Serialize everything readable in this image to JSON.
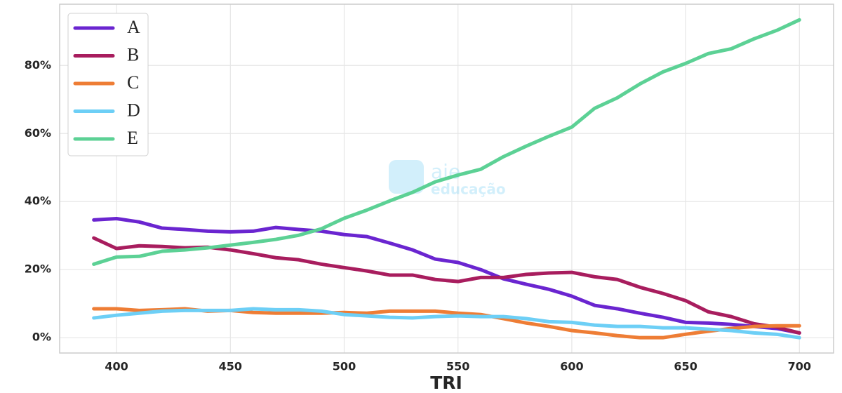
{
  "chart_data": {
    "type": "line",
    "x_label": "TRI",
    "watermark": [
      "aie",
      "educação"
    ],
    "x": [
      390,
      400,
      410,
      420,
      430,
      440,
      450,
      460,
      470,
      480,
      490,
      500,
      510,
      520,
      530,
      540,
      550,
      560,
      570,
      580,
      590,
      600,
      610,
      620,
      630,
      640,
      650,
      660,
      670,
      680,
      690,
      700
    ],
    "xlim": [
      375,
      715
    ],
    "xticks": [
      400,
      450,
      500,
      550,
      600,
      650,
      700
    ],
    "ylim": [
      -4.5,
      98
    ],
    "yticks": [
      {
        "value": 0,
        "label": "0%"
      },
      {
        "value": 20,
        "label": "20%"
      },
      {
        "value": 40,
        "label": "40%"
      },
      {
        "value": 60,
        "label": "60%"
      },
      {
        "value": 80,
        "label": "80%"
      }
    ],
    "grid": true,
    "legend": "upper left",
    "series": [
      {
        "name": "A",
        "color": "#6a25d0",
        "values": [
          34.6,
          35.0,
          34.0,
          32.2,
          31.8,
          31.3,
          31.1,
          31.3,
          32.4,
          31.8,
          31.3,
          30.3,
          29.7,
          27.8,
          25.8,
          23.1,
          22.1,
          20.0,
          17.3,
          15.7,
          14.2,
          12.2,
          9.5,
          8.5,
          7.2,
          6.0,
          4.5,
          4.3,
          3.9,
          3.3,
          2.7,
          1.4
        ]
      },
      {
        "name": "B",
        "color": "#a81d5e",
        "values": [
          29.3,
          26.2,
          27.0,
          26.8,
          26.4,
          26.6,
          25.8,
          24.7,
          23.5,
          22.9,
          21.6,
          20.6,
          19.6,
          18.4,
          18.4,
          17.1,
          16.5,
          17.7,
          17.7,
          18.6,
          19.0,
          19.2,
          17.9,
          17.1,
          14.8,
          13.0,
          10.9,
          7.6,
          6.2,
          4.1,
          3.1,
          1.4
        ]
      },
      {
        "name": "C",
        "color": "#ee7d35",
        "values": [
          8.5,
          8.5,
          8.0,
          8.2,
          8.5,
          7.8,
          8.0,
          7.4,
          7.2,
          7.2,
          7.2,
          7.4,
          7.2,
          7.8,
          7.8,
          7.8,
          7.2,
          6.8,
          5.6,
          4.3,
          3.3,
          2.1,
          1.4,
          0.6,
          0,
          0,
          1.0,
          1.9,
          2.7,
          3.3,
          3.5,
          3.5
        ]
      },
      {
        "name": "D",
        "color": "#6dcff6",
        "values": [
          5.8,
          6.6,
          7.2,
          7.8,
          8.0,
          8.0,
          8.0,
          8.5,
          8.2,
          8.2,
          7.8,
          6.8,
          6.4,
          6.0,
          5.8,
          6.2,
          6.4,
          6.2,
          6.2,
          5.6,
          4.7,
          4.5,
          3.7,
          3.3,
          3.3,
          2.9,
          2.9,
          2.5,
          2.1,
          1.4,
          1.0,
          0
        ]
      },
      {
        "name": "E",
        "color": "#5cd195",
        "values": [
          21.6,
          23.7,
          23.9,
          25.4,
          25.8,
          26.4,
          27.2,
          28.0,
          28.9,
          30.1,
          32.0,
          35.1,
          37.5,
          40.2,
          42.7,
          45.8,
          47.8,
          49.5,
          53.2,
          56.3,
          59.2,
          61.9,
          67.4,
          70.5,
          74.6,
          78.1,
          80.6,
          83.5,
          84.9,
          87.8,
          90.3,
          93.4
        ]
      }
    ]
  }
}
